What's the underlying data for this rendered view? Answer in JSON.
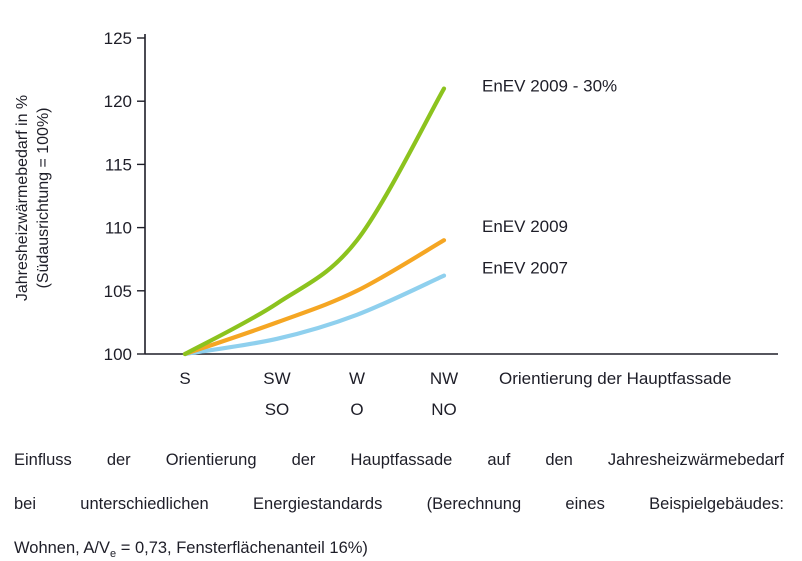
{
  "chart_data": {
    "type": "line",
    "title": "",
    "ylabel_lines": [
      "Jahresheizwärmebedarf in %",
      "(Südausrichtung = 100%)"
    ],
    "xlabel": "Orientierung der Hauptfassade",
    "categories": [
      {
        "top": "S",
        "bottom": ""
      },
      {
        "top": "SW",
        "bottom": "SO"
      },
      {
        "top": "W",
        "bottom": "O"
      },
      {
        "top": "NW",
        "bottom": "NO"
      }
    ],
    "ylim": [
      100,
      125
    ],
    "yticks": [
      100,
      105,
      110,
      115,
      120,
      125
    ],
    "grid": false,
    "legend": "inline labels at line ends",
    "series": [
      {
        "name": "EnEV 2009 - 30%",
        "color": "#8cc31e",
        "values": [
          100,
          104,
          109,
          121
        ]
      },
      {
        "name": "EnEV 2009",
        "color": "#f5a623",
        "values": [
          100,
          102.5,
          105,
          109
        ]
      },
      {
        "name": "EnEV 2007",
        "color": "#8fd0ee",
        "values": [
          100,
          101.2,
          103.1,
          106.2
        ]
      }
    ]
  },
  "caption": {
    "line1": "Einfluss der Orientierung der Hauptfassade auf den Jahresheizwärmebedarf",
    "line2": "bei unterschiedlichen Energiestandards (Berechnung eines Beispielgebäudes:",
    "line3_pre": "Wohnen, A/V",
    "line3_sub": "e",
    "line3_post": " = 0,73, Fensterflächenanteil 16%)"
  }
}
